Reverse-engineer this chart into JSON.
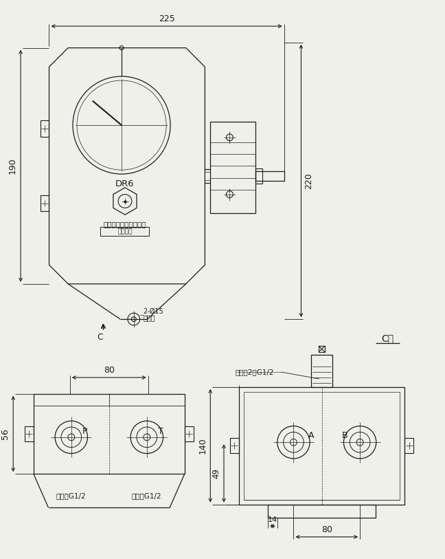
{
  "bg_color": "#f0f0eb",
  "line_color": "#1a1a1a",
  "lw": 0.9,
  "dim_225": "225",
  "dim_190": "190",
  "dim_220": "220",
  "dim_80_left": "80",
  "dim_56": "56",
  "dim_80_right": "80",
  "dim_140": "140",
  "dim_49": "49",
  "dim_14": "14",
  "label_DR6": "DR6",
  "label_company": "启东润滑设备有限公司",
  "label_serial": "出厂编号",
  "label_C": "C",
  "label_Cdir": "C向",
  "label_install_1": "2-Ø15",
  "label_install_2": "安装孔",
  "label_P": "P",
  "label_T": "T",
  "label_inlet": "进油口G1/2",
  "label_return": "回油口G1/2",
  "label_outlet": "出油古2－G1/2",
  "label_A": "A",
  "label_B": "B"
}
